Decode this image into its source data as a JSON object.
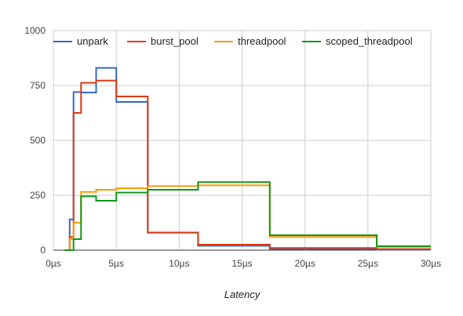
{
  "chart_data": {
    "type": "line",
    "step": true,
    "title": "",
    "xlabel": "Latency",
    "ylabel": "",
    "xlim": [
      0,
      30
    ],
    "ylim": [
      0,
      1000
    ],
    "x_unit": "µs",
    "x_ticks": [
      {
        "value": 0,
        "label": "0µs"
      },
      {
        "value": 5,
        "label": "5µs"
      },
      {
        "value": 10,
        "label": "10µs"
      },
      {
        "value": 15,
        "label": "15µs"
      },
      {
        "value": 20,
        "label": "20µs"
      },
      {
        "value": 25,
        "label": "25µs"
      },
      {
        "value": 30,
        "label": "30µs"
      }
    ],
    "y_ticks": [
      {
        "value": 0,
        "label": "0"
      },
      {
        "value": 250,
        "label": "250"
      },
      {
        "value": 500,
        "label": "500"
      },
      {
        "value": 750,
        "label": "750"
      },
      {
        "value": 1000,
        "label": "1000"
      }
    ],
    "grid": true,
    "legend_position": "top",
    "series": [
      {
        "name": "unpark",
        "color": "#3366cc",
        "x": [
          0.9,
          1.3,
          1.6,
          2.2,
          3.4,
          5.0,
          7.5,
          11.5,
          17.2,
          25.7,
          30
        ],
        "y": [
          0,
          140,
          720,
          718,
          830,
          675,
          80,
          20,
          5,
          2,
          2
        ]
      },
      {
        "name": "burst_pool",
        "color": "#dc3912",
        "x": [
          0.9,
          1.3,
          1.6,
          2.2,
          3.4,
          5.0,
          7.5,
          11.5,
          17.2,
          25.7,
          30
        ],
        "y": [
          0,
          60,
          625,
          762,
          772,
          700,
          80,
          25,
          10,
          5,
          5
        ]
      },
      {
        "name": "threadpool",
        "color": "#ff9900",
        "x": [
          0.9,
          1.3,
          1.6,
          2.2,
          3.4,
          5.0,
          7.5,
          11.5,
          17.2,
          25.7,
          30
        ],
        "y": [
          0,
          50,
          125,
          265,
          275,
          282,
          292,
          295,
          60,
          15,
          15
        ]
      },
      {
        "name": "scoped_threadpool",
        "color": "#109618",
        "x": [
          0.9,
          1.3,
          1.6,
          2.2,
          3.4,
          5.0,
          7.5,
          11.5,
          17.2,
          25.7,
          30
        ],
        "y": [
          0,
          0,
          50,
          245,
          225,
          262,
          275,
          310,
          68,
          18,
          18
        ]
      }
    ]
  }
}
